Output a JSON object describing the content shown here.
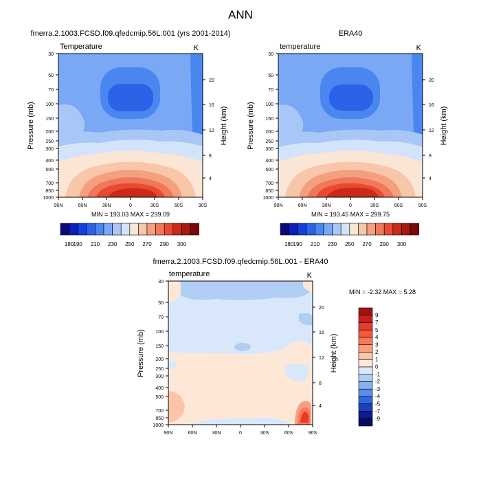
{
  "title": "ANN",
  "panels": [
    {
      "title": "fmerra.2.1003.FCSD.f09.qfedcmip.56L.001 (yrs 2001-2014)",
      "left_label": "Temperature",
      "right_label": "K",
      "stats": "MIN = 193.03  MAX = 299.09"
    },
    {
      "title": "ERA40",
      "left_label": "temperature",
      "right_label": "K",
      "stats": "MIN = 193.45  MAX = 299.75"
    },
    {
      "title": "fmerra.2.1003.FCSD.f09.qfedcmip.56L.001 - ERA40",
      "left_label": "temperature",
      "right_label": "K",
      "stats": "MIN =  -2.32  MAX =   5.28"
    }
  ],
  "axes": {
    "ylabel": "Pressure (mb)",
    "ylabel_right": "Height (km)",
    "pressure_ticks": [
      "30",
      "50",
      "70",
      "100",
      "150",
      "200",
      "250",
      "300",
      "400",
      "500",
      "700",
      "850",
      "1000"
    ],
    "height_ticks": [
      "20",
      "16",
      "12",
      "8",
      "4"
    ],
    "lat_ticks": [
      "90N",
      "60N",
      "30N",
      "0",
      "30S",
      "60S",
      "90S"
    ]
  },
  "colorbar_abs": {
    "labels": [
      "180",
      "190",
      "210",
      "230",
      "250",
      "270",
      "290",
      "300"
    ],
    "colors": [
      "#0a0a7a",
      "#0d1fb8",
      "#1540d6",
      "#2a62e8",
      "#4a86f0",
      "#7aa8f5",
      "#a8c7f7",
      "#d3e4fa",
      "#fbe6d6",
      "#f8c6a8",
      "#f4a07e",
      "#f07758",
      "#e84a30",
      "#cc2a18",
      "#a31a10",
      "#7a0808"
    ]
  },
  "colorbar_diff": {
    "labels": [
      "9",
      "7",
      "5",
      "4",
      "3",
      "2",
      "1",
      "0",
      "-1",
      "-2",
      "-3",
      "-4",
      "-5",
      "-7",
      "-9"
    ],
    "colors": [
      "#a01212",
      "#c81e1e",
      "#e63a2a",
      "#f35a3c",
      "#f77a5a",
      "#f99e80",
      "#fcc4a8",
      "#fde8d8",
      "#d8e8fa",
      "#b0cdf4",
      "#86b0ee",
      "#5a8ee8",
      "#3068e0",
      "#1a40c0",
      "#0e1a90",
      "#060a60"
    ]
  },
  "chart_data": [
    {
      "type": "heatmap",
      "title": "fmerra.2.1003.FCSD.f09.qfedcmip.56L.001 (yrs 2001-2014)",
      "variable": "Temperature",
      "units": "K",
      "xlabel": "",
      "ylabel": "Pressure (mb)",
      "ylabel_right": "Height (km)",
      "x_range": [
        "90N",
        "90S"
      ],
      "y_range_mb": [
        30,
        1000
      ],
      "min": 193.03,
      "max": 299.09,
      "contour_levels": [
        180,
        190,
        210,
        230,
        250,
        270,
        290,
        300
      ]
    },
    {
      "type": "heatmap",
      "title": "ERA40",
      "variable": "temperature",
      "units": "K",
      "xlabel": "",
      "ylabel": "Pressure (mb)",
      "ylabel_right": "Height (km)",
      "x_range": [
        "90N",
        "90S"
      ],
      "y_range_mb": [
        30,
        1000
      ],
      "min": 193.45,
      "max": 299.75,
      "contour_levels": [
        180,
        190,
        210,
        230,
        250,
        270,
        290,
        300
      ]
    },
    {
      "type": "heatmap",
      "title": "fmerra.2.1003.FCSD.f09.qfedcmip.56L.001 - ERA40",
      "variable": "temperature",
      "units": "K",
      "xlabel": "",
      "ylabel": "Pressure (mb)",
      "ylabel_right": "Height (km)",
      "x_range": [
        "90N",
        "90S"
      ],
      "y_range_mb": [
        30,
        1000
      ],
      "min": -2.32,
      "max": 5.28,
      "contour_levels": [
        -9,
        -7,
        -5,
        -4,
        -3,
        -2,
        -1,
        0,
        1,
        2,
        3,
        4,
        5,
        7,
        9
      ]
    }
  ]
}
